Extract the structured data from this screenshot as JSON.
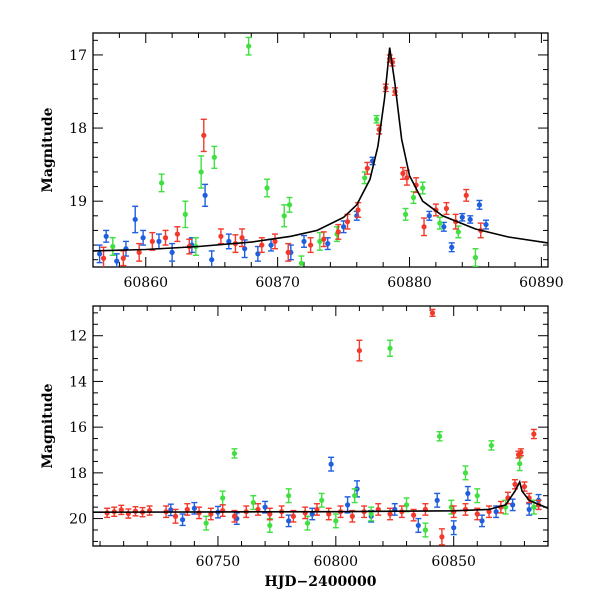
{
  "chart_data": [
    {
      "type": "scatter",
      "panel": "top",
      "title": "",
      "xlabel": "",
      "ylabel": "Magnitude",
      "xlim": [
        60856,
        60890.5
      ],
      "ylim": [
        19.9,
        16.7
      ],
      "y_inverted": true,
      "xticks": [
        60860,
        60870,
        60880,
        60890
      ],
      "xtick_labels": [
        "60860",
        "60870",
        "60880",
        "60890"
      ],
      "yticks": [
        17,
        18,
        19
      ],
      "ytick_labels": [
        "17",
        "18",
        "19"
      ],
      "grid": false,
      "legend": "none",
      "model_curve": {
        "name": "",
        "color": "#000000",
        "points": [
          [
            60856,
            19.68
          ],
          [
            60860,
            19.66
          ],
          [
            60864,
            19.62
          ],
          [
            60868,
            19.56
          ],
          [
            60871,
            19.48
          ],
          [
            60873,
            19.4
          ],
          [
            60875,
            19.22
          ],
          [
            60876,
            19.05
          ],
          [
            60877,
            18.7
          ],
          [
            60877.6,
            18.25
          ],
          [
            60878.1,
            17.6
          ],
          [
            60878.5,
            16.9
          ],
          [
            60878.9,
            17.4
          ],
          [
            60879.4,
            18.15
          ],
          [
            60880,
            18.65
          ],
          [
            60881,
            19.0
          ],
          [
            60882.5,
            19.2
          ],
          [
            60885,
            19.38
          ],
          [
            60887.5,
            19.49
          ],
          [
            60890.5,
            19.57
          ]
        ]
      },
      "series": [
        {
          "color": "#1e5fe0",
          "points": [
            [
              60856.5,
              19.72,
              0.12
            ],
            [
              60857,
              19.48,
              0.08
            ],
            [
              60857.8,
              19.82,
              0.1
            ],
            [
              60858.5,
              19.65,
              0.1
            ],
            [
              60859.2,
              19.25,
              0.18
            ],
            [
              60859.8,
              19.5,
              0.1
            ],
            [
              60861,
              19.55,
              0.1
            ],
            [
              60862,
              19.7,
              0.12
            ],
            [
              60863.5,
              19.6,
              0.1
            ],
            [
              60864.5,
              18.92,
              0.15
            ],
            [
              60865,
              19.8,
              0.12
            ],
            [
              60866.3,
              19.55,
              0.1
            ],
            [
              60867.5,
              19.65,
              0.12
            ],
            [
              60868.5,
              19.72,
              0.1
            ],
            [
              60869.5,
              19.6,
              0.08
            ],
            [
              60871,
              19.7,
              0.1
            ],
            [
              60872,
              19.55,
              0.08
            ],
            [
              60873.8,
              19.58,
              0.08
            ],
            [
              60875,
              19.35,
              0.08
            ],
            [
              60876,
              19.2,
              0.06
            ],
            [
              60877.2,
              18.45,
              0.05
            ],
            [
              60881.5,
              19.2,
              0.06
            ],
            [
              60882.6,
              19.35,
              0.06
            ],
            [
              60883.2,
              19.63,
              0.06
            ],
            [
              60884,
              19.22,
              0.05
            ],
            [
              60884.6,
              19.25,
              0.05
            ],
            [
              60885.3,
              19.05,
              0.06
            ],
            [
              60885.8,
              19.32,
              0.06
            ]
          ]
        },
        {
          "color": "#3fe03f",
          "points": [
            [
              60857.5,
              19.62,
              0.12
            ],
            [
              60861.2,
              18.75,
              0.12
            ],
            [
              60863,
              19.18,
              0.18
            ],
            [
              60863.8,
              19.62,
              0.12
            ],
            [
              60864.2,
              18.6,
              0.22
            ],
            [
              60865.2,
              18.4,
              0.15
            ],
            [
              60867.8,
              16.88,
              0.12
            ],
            [
              60869.2,
              18.82,
              0.12
            ],
            [
              60870.5,
              19.2,
              0.15
            ],
            [
              60870.9,
              19.05,
              0.1
            ],
            [
              60871.8,
              19.85,
              0.1
            ],
            [
              60873.2,
              19.55,
              0.12
            ],
            [
              60874.5,
              19.45,
              0.1
            ],
            [
              60876.6,
              18.68,
              0.08
            ],
            [
              60877.5,
              17.88,
              0.05
            ],
            [
              60879.7,
              19.18,
              0.08
            ],
            [
              60880.3,
              18.95,
              0.08
            ],
            [
              60881,
              18.82,
              0.08
            ],
            [
              60882.3,
              19.3,
              0.08
            ],
            [
              60883.7,
              19.42,
              0.08
            ],
            [
              60885,
              19.77,
              0.12
            ]
          ]
        },
        {
          "color": "#f2392b",
          "points": [
            [
              60856.8,
              19.78,
              0.15
            ],
            [
              60858.3,
              19.78,
              0.1
            ],
            [
              60859.5,
              19.7,
              0.12
            ],
            [
              60860.5,
              19.55,
              0.12
            ],
            [
              60861.5,
              19.5,
              0.1
            ],
            [
              60862.4,
              19.45,
              0.1
            ],
            [
              60863.3,
              19.62,
              0.1
            ],
            [
              60864.4,
              18.1,
              0.22
            ],
            [
              60865.7,
              19.48,
              0.1
            ],
            [
              60866.8,
              19.58,
              0.12
            ],
            [
              60867.3,
              19.5,
              0.12
            ],
            [
              60868.8,
              19.6,
              0.1
            ],
            [
              60869.8,
              19.55,
              0.1
            ],
            [
              60870.8,
              19.7,
              0.12
            ],
            [
              60872.5,
              19.6,
              0.1
            ],
            [
              60873.5,
              19.52,
              0.1
            ],
            [
              60874.6,
              19.42,
              0.1
            ],
            [
              60875.3,
              19.28,
              0.1
            ],
            [
              60876.1,
              19.12,
              0.1
            ],
            [
              60876.8,
              18.55,
              0.08
            ],
            [
              60877.7,
              18.02,
              0.06
            ],
            [
              60878.2,
              17.45,
              0.05
            ],
            [
              60878.5,
              17.05,
              0.05
            ],
            [
              60878.7,
              17.1,
              0.05
            ],
            [
              60878.9,
              17.5,
              0.05
            ],
            [
              60879.5,
              18.62,
              0.08
            ],
            [
              60879.8,
              18.68,
              0.1
            ],
            [
              60880.5,
              18.78,
              0.1
            ],
            [
              60881.1,
              19.35,
              0.12
            ],
            [
              60882,
              19.12,
              0.08
            ],
            [
              60882.8,
              19.1,
              0.08
            ],
            [
              60883.5,
              19.28,
              0.1
            ],
            [
              60884.3,
              18.92,
              0.08
            ],
            [
              60885.4,
              19.4,
              0.1
            ]
          ]
        }
      ]
    },
    {
      "type": "scatter",
      "panel": "bottom",
      "title": "",
      "xlabel": "HJD−2400000",
      "ylabel": "Magnitude",
      "xlim": [
        60697,
        60890
      ],
      "ylim": [
        21.2,
        10.7
      ],
      "y_inverted": true,
      "xticks": [
        60750,
        60800,
        60850
      ],
      "xtick_labels": [
        "60750",
        "60800",
        "60850"
      ],
      "yticks": [
        12,
        14,
        16,
        18,
        20
      ],
      "ytick_labels": [
        "12",
        "14",
        "16",
        "18",
        "20"
      ],
      "grid": false,
      "legend": "none",
      "model_curve": {
        "name": "",
        "color": "#000000",
        "points": [
          [
            60697,
            19.72
          ],
          [
            60750,
            19.71
          ],
          [
            60800,
            19.7
          ],
          [
            60850,
            19.66
          ],
          [
            60865,
            19.6
          ],
          [
            60872,
            19.4
          ],
          [
            60876,
            18.8
          ],
          [
            60878,
            18.4
          ],
          [
            60879,
            18.8
          ],
          [
            60882,
            19.2
          ],
          [
            60890,
            19.55
          ]
        ]
      },
      "series": [
        {
          "color": "#1e5fe0",
          "points": [
            [
              60730,
              19.62,
              0.25
            ],
            [
              60735,
              20.05,
              0.25
            ],
            [
              60740,
              19.55,
              0.25
            ],
            [
              60750,
              19.72,
              0.25
            ],
            [
              60758,
              20.0,
              0.25
            ],
            [
              60770,
              19.5,
              0.25
            ],
            [
              60780,
              20.1,
              0.25
            ],
            [
              60790,
              19.8,
              0.25
            ],
            [
              60798,
              17.62,
              0.3
            ],
            [
              60805,
              19.4,
              0.35
            ],
            [
              60809,
              18.7,
              0.35
            ],
            [
              60815,
              19.9,
              0.25
            ],
            [
              60825,
              19.6,
              0.25
            ],
            [
              60835,
              20.3,
              0.3
            ],
            [
              60843,
              19.2,
              0.3
            ],
            [
              60850,
              20.4,
              0.3
            ],
            [
              60856,
              18.9,
              0.3
            ],
            [
              60862,
              20.1,
              0.25
            ],
            [
              60868,
              19.7,
              0.25
            ],
            [
              60875,
              19.4,
              0.25
            ],
            [
              60882,
              19.6,
              0.25
            ],
            [
              60886,
              19.2,
              0.25
            ]
          ]
        },
        {
          "color": "#3fe03f",
          "points": [
            [
              60745,
              20.2,
              0.3
            ],
            [
              60752,
              19.1,
              0.3
            ],
            [
              60757,
              17.15,
              0.2
            ],
            [
              60765,
              19.3,
              0.3
            ],
            [
              60772,
              20.3,
              0.3
            ],
            [
              60780,
              19.0,
              0.3
            ],
            [
              60788,
              20.2,
              0.3
            ],
            [
              60794,
              19.2,
              0.3
            ],
            [
              60800,
              20.1,
              0.3
            ],
            [
              60808,
              19.0,
              0.3
            ],
            [
              60815,
              19.8,
              0.3
            ],
            [
              60823,
              12.55,
              0.35
            ],
            [
              60830,
              19.4,
              0.3
            ],
            [
              60838,
              20.5,
              0.3
            ],
            [
              60844,
              16.4,
              0.2
            ],
            [
              60849,
              19.5,
              0.3
            ],
            [
              60855,
              18.0,
              0.3
            ],
            [
              60860,
              19.0,
              0.3
            ],
            [
              60866,
              16.8,
              0.2
            ],
            [
              60872,
              19.5,
              0.3
            ],
            [
              60878,
              17.6,
              0.3
            ],
            [
              60884,
              19.5,
              0.3
            ]
          ]
        },
        {
          "color": "#f2392b",
          "points": [
            [
              60703,
              19.75,
              0.2
            ],
            [
              60706,
              19.7,
              0.2
            ],
            [
              60709,
              19.62,
              0.2
            ],
            [
              60712,
              19.78,
              0.2
            ],
            [
              60715,
              19.68,
              0.2
            ],
            [
              60718,
              19.72,
              0.2
            ],
            [
              60721,
              19.65,
              0.2
            ],
            [
              60728,
              19.7,
              0.25
            ],
            [
              60732,
              19.9,
              0.3
            ],
            [
              60737,
              19.6,
              0.25
            ],
            [
              60742,
              19.75,
              0.25
            ],
            [
              60747,
              19.8,
              0.25
            ],
            [
              60752,
              19.65,
              0.25
            ],
            [
              60757,
              19.9,
              0.25
            ],
            [
              60762,
              19.7,
              0.25
            ],
            [
              60767,
              19.6,
              0.25
            ],
            [
              60772,
              19.8,
              0.25
            ],
            [
              60777,
              19.7,
              0.25
            ],
            [
              60782,
              19.9,
              0.25
            ],
            [
              60787,
              19.75,
              0.25
            ],
            [
              60792,
              19.6,
              0.25
            ],
            [
              60797,
              19.8,
              0.25
            ],
            [
              60802,
              19.7,
              0.25
            ],
            [
              60807,
              19.9,
              0.25
            ],
            [
              60810,
              12.65,
              0.45
            ],
            [
              60812,
              19.7,
              0.25
            ],
            [
              60818,
              19.6,
              0.25
            ],
            [
              60823,
              19.8,
              0.25
            ],
            [
              60828,
              19.7,
              0.25
            ],
            [
              60833,
              19.85,
              0.25
            ],
            [
              60838,
              19.6,
              0.25
            ],
            [
              60841,
              11.0,
              0.15
            ],
            [
              60845,
              20.8,
              0.35
            ],
            [
              60850,
              19.7,
              0.25
            ],
            [
              60855,
              19.6,
              0.25
            ],
            [
              60860,
              19.8,
              0.25
            ],
            [
              60865,
              19.7,
              0.25
            ],
            [
              60870,
              19.5,
              0.25
            ],
            [
              60873,
              19.1,
              0.25
            ],
            [
              60876,
              18.5,
              0.2
            ],
            [
              60877.5,
              17.2,
              0.15
            ],
            [
              60878.5,
              17.1,
              0.15
            ],
            [
              60880,
              18.6,
              0.2
            ],
            [
              60882,
              19.1,
              0.2
            ],
            [
              60884,
              16.3,
              0.2
            ],
            [
              60886,
              19.4,
              0.2
            ]
          ]
        }
      ]
    }
  ]
}
